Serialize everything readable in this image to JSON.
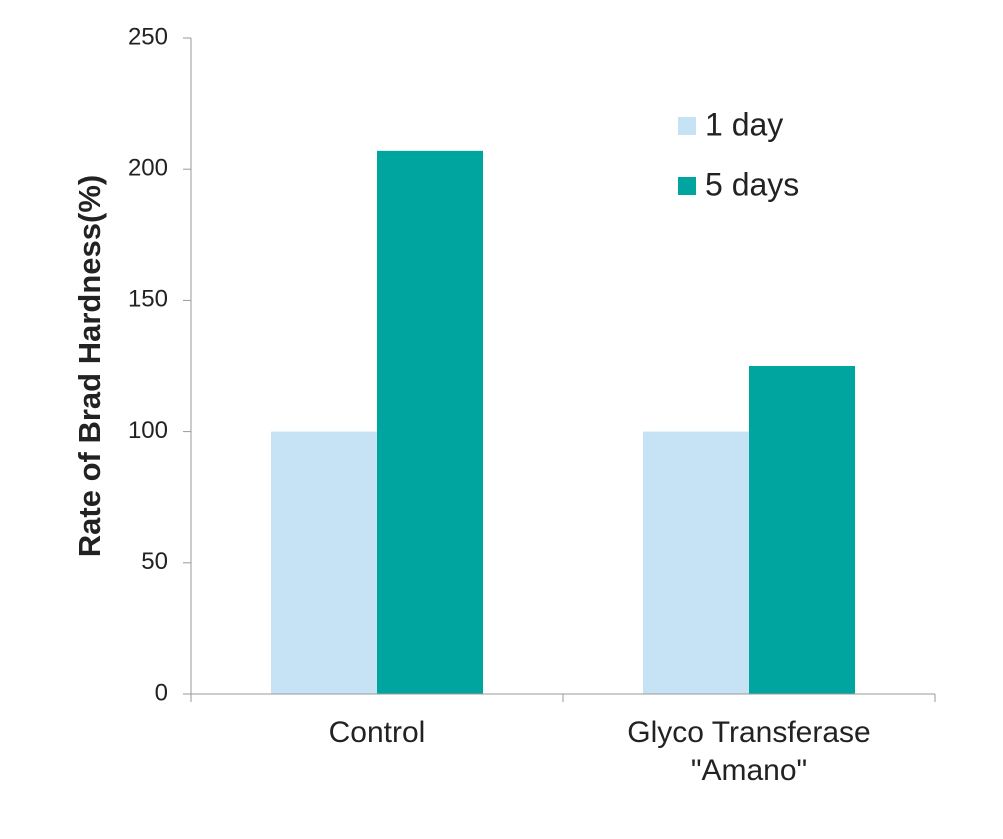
{
  "chart_data": {
    "type": "bar",
    "y_label": "Rate of Brad Hardness(%)",
    "categories": [
      "Control",
      "Glyco Transferase \"Amano\""
    ],
    "series": [
      {
        "name": "1 day",
        "color": "#c5e3f5",
        "values": [
          100,
          100
        ]
      },
      {
        "name": "5 days",
        "color": "#00a59f",
        "values": [
          207,
          125
        ]
      }
    ],
    "ylim": [
      0,
      250
    ],
    "yticks": [
      0,
      50,
      100,
      150,
      200,
      250
    ],
    "grid": false,
    "legend": "upper right"
  }
}
